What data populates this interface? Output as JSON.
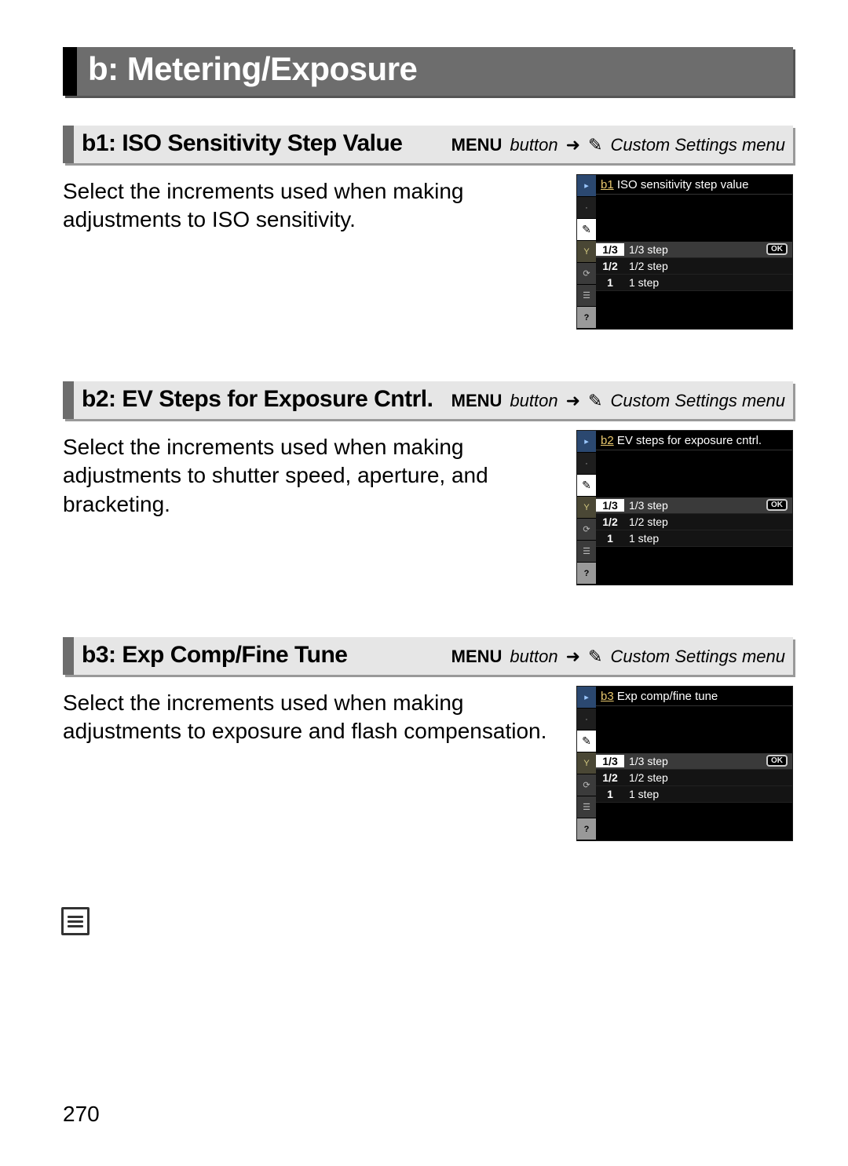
{
  "page_number": "270",
  "main_heading": "b: Metering/Exposure",
  "breadcrumb": {
    "menu_label": "MENU",
    "menu_suffix": "button",
    "arrow": "➜",
    "pencil_icon": "✎",
    "dest": "Custom Settings menu"
  },
  "sections": [
    {
      "id": "b1",
      "title": "b1: ISO Sensitivity Step Value",
      "description": "Select the increments used when making adjustments to ISO sensitivity.",
      "lcd": {
        "title_prefix": "b1",
        "title_text": "ISO sensitivity step value",
        "options": [
          {
            "frac": "1/3",
            "label": "1/3 step",
            "selected": true,
            "ok": true
          },
          {
            "frac": "1/2",
            "label": "1/2 step",
            "selected": false,
            "ok": false
          },
          {
            "frac": "1",
            "label": "1 step",
            "selected": false,
            "ok": false
          }
        ]
      }
    },
    {
      "id": "b2",
      "title": "b2: EV Steps for Exposure Cntrl.",
      "description": "Select the increments used when making adjustments to shutter speed, aperture, and bracketing.",
      "lcd": {
        "title_prefix": "b2",
        "title_text": "EV steps for exposure cntrl.",
        "options": [
          {
            "frac": "1/3",
            "label": "1/3 step",
            "selected": true,
            "ok": true
          },
          {
            "frac": "1/2",
            "label": "1/2 step",
            "selected": false,
            "ok": false
          },
          {
            "frac": "1",
            "label": "1 step",
            "selected": false,
            "ok": false
          }
        ]
      }
    },
    {
      "id": "b3",
      "title": "b3: Exp Comp/Fine Tune",
      "description": "Select the increments used when making adjustments to exposure and flash compensation.",
      "lcd": {
        "title_prefix": "b3",
        "title_text": "Exp comp/fine tune",
        "options": [
          {
            "frac": "1/3",
            "label": "1/3 step",
            "selected": true,
            "ok": true
          },
          {
            "frac": "1/2",
            "label": "1/2 step",
            "selected": false,
            "ok": false
          },
          {
            "frac": "1",
            "label": "1 step",
            "selected": false,
            "ok": false
          }
        ]
      }
    }
  ],
  "sidebar_icons": [
    "▸",
    "·",
    "✎",
    "Y",
    "⟳",
    "☰",
    "?"
  ],
  "colors": {
    "header_bg": "#6d6d6d",
    "header_border": "#000000",
    "sub_bg": "#e6e6e6",
    "sub_border": "#6d6d6d",
    "lcd_bg": "#000000",
    "lcd_highlight": "#ffffff",
    "gold": "#e8c86e"
  }
}
